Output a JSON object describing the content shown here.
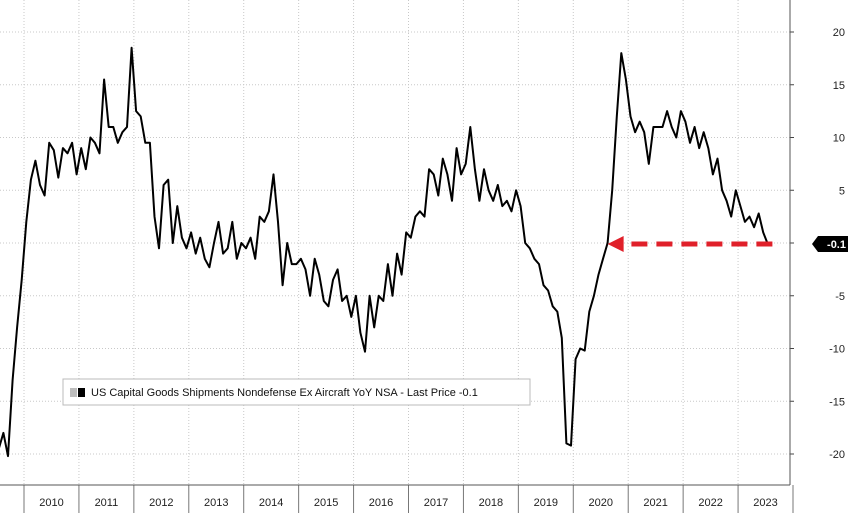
{
  "chart_data": {
    "type": "line",
    "xlabel": "",
    "ylabel": "",
    "ylim": [
      -20,
      20
    ],
    "y_ticks": [
      20,
      15,
      10,
      5,
      0,
      -5,
      -10,
      -15,
      -20
    ],
    "x_year_labels": [
      "2010",
      "2011",
      "2012",
      "2013",
      "2014",
      "2015",
      "2016",
      "2017",
      "2018",
      "2019",
      "2020",
      "2021",
      "2022",
      "2023"
    ],
    "x_range": [
      "2009-07",
      "2023-12"
    ],
    "grid": true,
    "legend_placement": "bottom-left",
    "series": [
      {
        "name": "US Capital Goods Shipments Nondefense Ex Aircraft YoY NSA - Last Price",
        "last_price_label": "-0.1",
        "color": "#000000",
        "points": [
          [
            "2009-07",
            -19.5
          ],
          [
            "2009-08",
            -18.0
          ],
          [
            "2009-09",
            -20.2
          ],
          [
            "2009-10",
            -13.0
          ],
          [
            "2009-11",
            -8.0
          ],
          [
            "2009-12",
            -3.5
          ],
          [
            "2010-01",
            2.0
          ],
          [
            "2010-02",
            6.0
          ],
          [
            "2010-03",
            7.8
          ],
          [
            "2010-04",
            5.5
          ],
          [
            "2010-05",
            4.5
          ],
          [
            "2010-06",
            9.5
          ],
          [
            "2010-07",
            8.8
          ],
          [
            "2010-08",
            6.2
          ],
          [
            "2010-09",
            9.0
          ],
          [
            "2010-10",
            8.5
          ],
          [
            "2010-11",
            9.5
          ],
          [
            "2010-12",
            6.5
          ],
          [
            "2011-01",
            9.0
          ],
          [
            "2011-02",
            7.0
          ],
          [
            "2011-03",
            10.0
          ],
          [
            "2011-04",
            9.5
          ],
          [
            "2011-05",
            8.5
          ],
          [
            "2011-06",
            15.5
          ],
          [
            "2011-07",
            11.0
          ],
          [
            "2011-08",
            11.0
          ],
          [
            "2011-09",
            9.5
          ],
          [
            "2011-10",
            10.5
          ],
          [
            "2011-11",
            11.0
          ],
          [
            "2011-12",
            18.5
          ],
          [
            "2012-01",
            12.5
          ],
          [
            "2012-02",
            12.0
          ],
          [
            "2012-03",
            9.5
          ],
          [
            "2012-04",
            9.5
          ],
          [
            "2012-05",
            2.5
          ],
          [
            "2012-06",
            -0.5
          ],
          [
            "2012-07",
            5.5
          ],
          [
            "2012-08",
            6.0
          ],
          [
            "2012-09",
            0.0
          ],
          [
            "2012-10",
            3.5
          ],
          [
            "2012-11",
            0.5
          ],
          [
            "2012-12",
            -0.5
          ],
          [
            "2013-01",
            1.0
          ],
          [
            "2013-02",
            -1.0
          ],
          [
            "2013-03",
            0.5
          ],
          [
            "2013-04",
            -1.5
          ],
          [
            "2013-05",
            -2.3
          ],
          [
            "2013-06",
            0.0
          ],
          [
            "2013-07",
            2.0
          ],
          [
            "2013-08",
            -1.0
          ],
          [
            "2013-09",
            -0.5
          ],
          [
            "2013-10",
            2.0
          ],
          [
            "2013-11",
            -1.5
          ],
          [
            "2013-12",
            0.0
          ],
          [
            "2014-01",
            -0.5
          ],
          [
            "2014-02",
            0.5
          ],
          [
            "2014-03",
            -1.5
          ],
          [
            "2014-04",
            2.5
          ],
          [
            "2014-05",
            2.0
          ],
          [
            "2014-06",
            3.0
          ],
          [
            "2014-07",
            6.5
          ],
          [
            "2014-08",
            2.0
          ],
          [
            "2014-09",
            -4.0
          ],
          [
            "2014-10",
            0.0
          ],
          [
            "2014-11",
            -2.0
          ],
          [
            "2014-12",
            -2.0
          ],
          [
            "2015-01",
            -1.5
          ],
          [
            "2015-02",
            -2.5
          ],
          [
            "2015-03",
            -5.0
          ],
          [
            "2015-04",
            -1.5
          ],
          [
            "2015-05",
            -3.0
          ],
          [
            "2015-06",
            -5.5
          ],
          [
            "2015-07",
            -6.0
          ],
          [
            "2015-08",
            -3.5
          ],
          [
            "2015-09",
            -2.5
          ],
          [
            "2015-10",
            -5.5
          ],
          [
            "2015-11",
            -5.0
          ],
          [
            "2015-12",
            -7.0
          ],
          [
            "2016-01",
            -5.0
          ],
          [
            "2016-02",
            -8.5
          ],
          [
            "2016-03",
            -10.3
          ],
          [
            "2016-04",
            -5.0
          ],
          [
            "2016-05",
            -8.0
          ],
          [
            "2016-06",
            -5.0
          ],
          [
            "2016-07",
            -5.5
          ],
          [
            "2016-08",
            -2.0
          ],
          [
            "2016-09",
            -5.0
          ],
          [
            "2016-10",
            -1.0
          ],
          [
            "2016-11",
            -3.0
          ],
          [
            "2016-12",
            1.0
          ],
          [
            "2017-01",
            0.5
          ],
          [
            "2017-02",
            2.5
          ],
          [
            "2017-03",
            3.0
          ],
          [
            "2017-04",
            2.5
          ],
          [
            "2017-05",
            7.0
          ],
          [
            "2017-06",
            6.5
          ],
          [
            "2017-07",
            4.5
          ],
          [
            "2017-08",
            8.0
          ],
          [
            "2017-09",
            6.5
          ],
          [
            "2017-10",
            4.0
          ],
          [
            "2017-11",
            9.0
          ],
          [
            "2017-12",
            6.5
          ],
          [
            "2018-01",
            7.5
          ],
          [
            "2018-02",
            11.0
          ],
          [
            "2018-03",
            7.0
          ],
          [
            "2018-04",
            4.0
          ],
          [
            "2018-05",
            7.0
          ],
          [
            "2018-06",
            5.0
          ],
          [
            "2018-07",
            4.0
          ],
          [
            "2018-08",
            5.5
          ],
          [
            "2018-09",
            3.5
          ],
          [
            "2018-10",
            4.0
          ],
          [
            "2018-11",
            3.0
          ],
          [
            "2018-12",
            5.0
          ],
          [
            "2019-01",
            3.5
          ],
          [
            "2019-02",
            0.0
          ],
          [
            "2019-03",
            -0.5
          ],
          [
            "2019-04",
            -1.5
          ],
          [
            "2019-05",
            -2.0
          ],
          [
            "2019-06",
            -4.0
          ],
          [
            "2019-07",
            -4.5
          ],
          [
            "2019-08",
            -6.0
          ],
          [
            "2019-09",
            -6.5
          ],
          [
            "2019-10",
            -9.0
          ],
          [
            "2019-11",
            -19.0
          ],
          [
            "2019-12",
            -19.2
          ],
          [
            "2020-01",
            -11.0
          ],
          [
            "2020-02",
            -10.0
          ],
          [
            "2020-03",
            -10.2
          ],
          [
            "2020-04",
            -6.5
          ],
          [
            "2020-05",
            -5.0
          ],
          [
            "2020-06",
            -3.0
          ],
          [
            "2020-07",
            -1.5
          ],
          [
            "2020-08",
            0.0
          ],
          [
            "2020-09",
            5.0
          ],
          [
            "2020-10",
            12.0
          ],
          [
            "2020-11",
            18.0
          ],
          [
            "2020-12",
            15.5
          ],
          [
            "2021-01",
            12.0
          ],
          [
            "2021-02",
            10.5
          ],
          [
            "2021-03",
            11.5
          ],
          [
            "2021-04",
            10.5
          ],
          [
            "2021-05",
            7.5
          ],
          [
            "2021-06",
            11.0
          ],
          [
            "2021-07",
            11.0
          ],
          [
            "2021-08",
            11.0
          ],
          [
            "2021-09",
            12.5
          ],
          [
            "2021-10",
            11.0
          ],
          [
            "2021-11",
            10.0
          ],
          [
            "2021-12",
            12.5
          ],
          [
            "2022-01",
            11.5
          ],
          [
            "2022-02",
            9.5
          ],
          [
            "2022-03",
            11.0
          ],
          [
            "2022-04",
            9.0
          ],
          [
            "2022-05",
            10.5
          ],
          [
            "2022-06",
            9.0
          ],
          [
            "2022-07",
            6.5
          ],
          [
            "2022-08",
            8.0
          ],
          [
            "2022-09",
            5.0
          ],
          [
            "2022-10",
            4.0
          ],
          [
            "2022-11",
            2.5
          ],
          [
            "2022-12",
            5.0
          ],
          [
            "2023-01",
            3.5
          ],
          [
            "2023-02",
            2.0
          ],
          [
            "2023-03",
            2.5
          ],
          [
            "2023-04",
            1.5
          ],
          [
            "2023-05",
            2.8
          ],
          [
            "2023-06",
            1.0
          ],
          [
            "2023-07",
            -0.1
          ]
        ]
      }
    ],
    "annotations": [
      {
        "type": "arrow",
        "style": "dashed",
        "color": "#e0202a",
        "from_x": "2023-08",
        "to_x": "2020-08",
        "y": -0.1
      }
    ]
  },
  "legend": {
    "label": "US Capital Goods Shipments Nondefense Ex Aircraft YoY NSA - Last Price -0.1"
  }
}
